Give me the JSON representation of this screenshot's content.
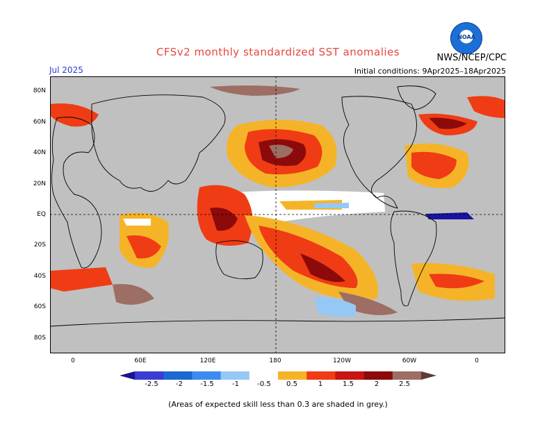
{
  "title": "CFSv2 monthly standardized SST anomalies",
  "agency": "NWS/NCEP/CPC",
  "logo_text": "NOAA",
  "forecast_month": "Jul 2025",
  "initial_conditions": "Initial conditions: 9Apr2025–18Apr2025",
  "lat_labels": [
    "80N",
    "60N",
    "40N",
    "20N",
    "EQ",
    "20S",
    "40S",
    "60S",
    "80S"
  ],
  "lon_labels": [
    "0",
    "60E",
    "120E",
    "180",
    "120W",
    "60W",
    "0"
  ],
  "colorbar_labels": [
    "-2.5",
    "-2",
    "-1.5",
    "-1",
    "-0.5",
    "0.5",
    "1",
    "1.5",
    "2",
    "2.5"
  ],
  "colorbar_colors": [
    "#1a1491",
    "#3c3cd2",
    "#1a68d2",
    "#3c8cf0",
    "#96c8f5",
    "#ffffff",
    "#f5b428",
    "#f03c14",
    "#c81414",
    "#8c0a0a",
    "#9c6e64",
    "#5a3c32"
  ],
  "colors": {
    "low_skill_grey": "#c0c0c0",
    "land": "#c0c0c0",
    "title": "#e8453c",
    "month": "#2a39d8"
  },
  "footnote": "(Areas of expected skill less than 0.3 are shaded in grey.)"
}
